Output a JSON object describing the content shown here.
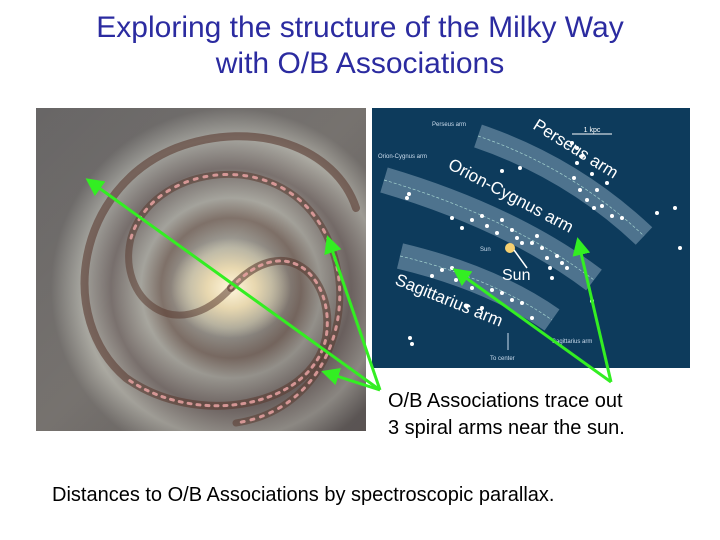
{
  "title": {
    "line1": "Exploring the structure of the Milky Way",
    "line2": "with O/B Associations"
  },
  "map": {
    "small_labels": {
      "perseus": "Perseus arm",
      "orion": "Orion-Cygnus arm",
      "sagittarius": "Sagittarius arm",
      "sun": "Sun",
      "center": "To center",
      "scale": "1 kpc"
    },
    "big_labels": {
      "perseus": "Perseus arm",
      "orion": "Orion-Cygnus arm",
      "sagittarius": "Sagittarius arm",
      "sun": "Sun"
    }
  },
  "caption": {
    "line1": "O/B Associations trace out",
    "line2": "3 spiral arms near the sun."
  },
  "footer": "Distances to O/B Associations by spectroscopic parallax.",
  "colors": {
    "title": "#2b2ba0",
    "arrow": "#33ee22",
    "map_bg": "#0d3b5c"
  }
}
